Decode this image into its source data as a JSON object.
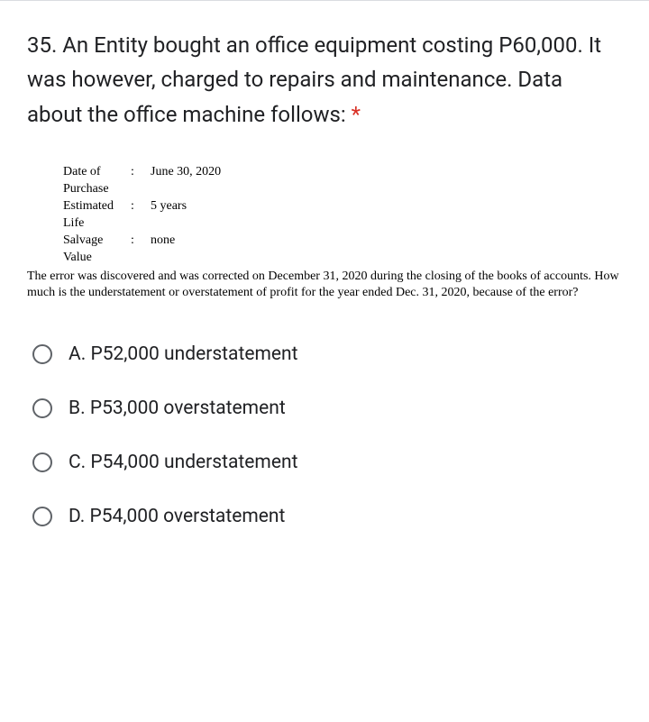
{
  "question": {
    "number": "35.",
    "text": "An Entity bought an office equipment costing P60,000. It was however, charged to repairs and maintenance. Data about the office machine follows:",
    "required_marker": "*"
  },
  "data_rows": [
    {
      "label": "Date of Purchase",
      "sep": ":",
      "value": "June 30, 2020"
    },
    {
      "label": "Estimated Life",
      "sep": ":",
      "value": "5 years"
    },
    {
      "label": "Salvage Value",
      "sep": ":",
      "value": "none"
    }
  ],
  "data_narrative": "The error was discovered and was corrected on December 31, 2020 during the closing of the books of accounts. How much is the understatement or overstatement of profit for the year ended Dec. 31, 2020, because of the error?",
  "options": [
    {
      "label": "A. P52,000 understatement"
    },
    {
      "label": "B. P53,000 overstatement"
    },
    {
      "label": "C. P54,000 understatement"
    },
    {
      "label": "D. P54,000 overstatement"
    }
  ],
  "colors": {
    "text": "#202124",
    "required": "#d93025",
    "radio_border": "#5f6368",
    "divider": "#dadce0",
    "background": "#ffffff"
  }
}
